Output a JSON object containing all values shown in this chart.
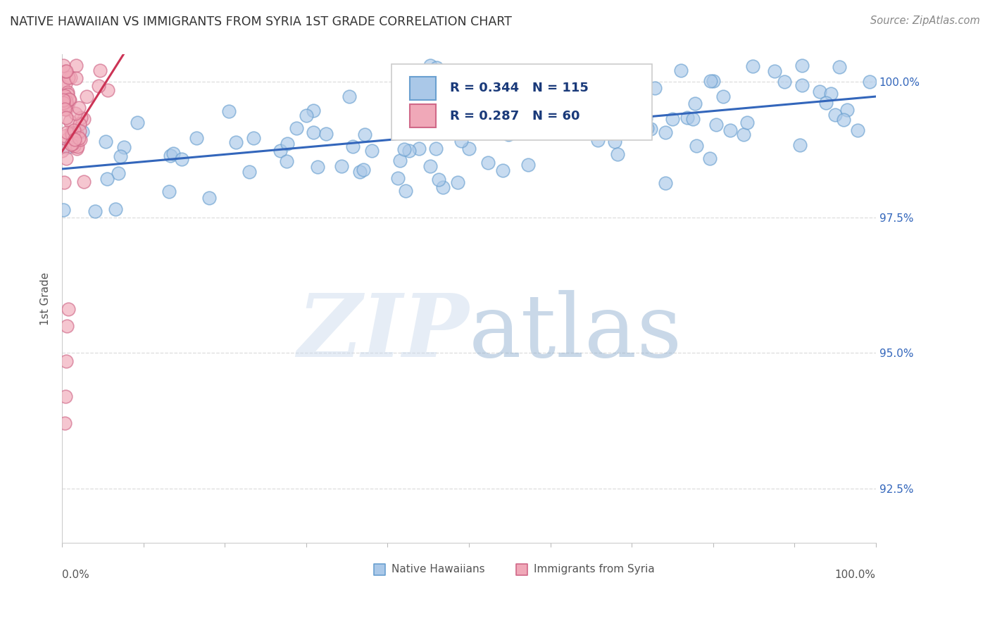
{
  "title": "NATIVE HAWAIIAN VS IMMIGRANTS FROM SYRIA 1ST GRADE CORRELATION CHART",
  "source": "Source: ZipAtlas.com",
  "ylabel": "1st Grade",
  "legend_blue_label": "Native Hawaiians",
  "legend_pink_label": "Immigrants from Syria",
  "blue_color": "#aac8e8",
  "blue_edge_color": "#6aa0d0",
  "pink_color": "#f0a8b8",
  "pink_edge_color": "#d06888",
  "trendline_blue_color": "#3366bb",
  "trendline_pink_color": "#cc3355",
  "xlim": [
    0,
    100
  ],
  "ylim": [
    91.5,
    100.5
  ],
  "yticks_right": [
    100.0,
    97.5,
    95.0,
    92.5
  ],
  "ytick_labels_right": [
    "100.0%",
    "97.5%",
    "95.0%",
    "92.5%"
  ],
  "grid_color": "#dddddd",
  "title_color": "#333333",
  "axis_label_color": "#555555",
  "right_tick_color": "#3366bb",
  "watermark_zip_color": "#c8d8ec",
  "watermark_atlas_color": "#88aacc",
  "watermark_alpha": 0.45,
  "legend_r_blue": "R = 0.344",
  "legend_n_blue": "N = 115",
  "legend_r_pink": "R = 0.287",
  "legend_n_pink": "N = 60",
  "scatter_size": 180,
  "scatter_alpha": 0.65,
  "scatter_linewidth": 1.2
}
